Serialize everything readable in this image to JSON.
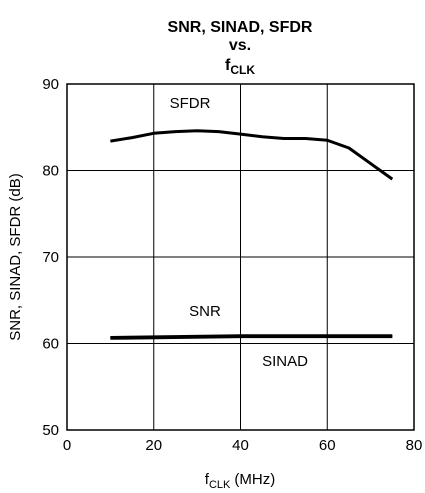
{
  "chart_data": {
    "type": "line",
    "title_lines": [
      "SNR, SINAD, SFDR",
      "vs."
    ],
    "title_var": {
      "symbol": "f",
      "subscript": "CLK"
    },
    "x_label": {
      "symbol": "f",
      "subscript": "CLK",
      "unit": "(MHz)"
    },
    "y_label": "SNR, SINAD, SFDR (dB)",
    "xlim": [
      0,
      80
    ],
    "xticks": [
      0,
      20,
      40,
      60,
      80
    ],
    "ylim": [
      50,
      90
    ],
    "yticks": [
      50,
      60,
      70,
      80,
      90
    ],
    "grid": true,
    "series": [
      {
        "name": "SFDR",
        "color": "#000000",
        "x": [
          10,
          15,
          20,
          25,
          30,
          35,
          40,
          45,
          50,
          55,
          60,
          65,
          70,
          75
        ],
        "values": [
          83.4,
          83.8,
          84.3,
          84.5,
          84.6,
          84.5,
          84.2,
          83.9,
          83.7,
          83.7,
          83.5,
          82.6,
          80.8,
          79.0
        ]
      },
      {
        "name": "SNR",
        "color": "#000000",
        "x": [
          10,
          40,
          75
        ],
        "values": [
          60.7,
          60.9,
          60.9
        ]
      },
      {
        "name": "SINAD",
        "color": "#000000",
        "x": [
          10,
          40,
          75
        ],
        "values": [
          60.6,
          60.8,
          60.8
        ]
      }
    ]
  }
}
